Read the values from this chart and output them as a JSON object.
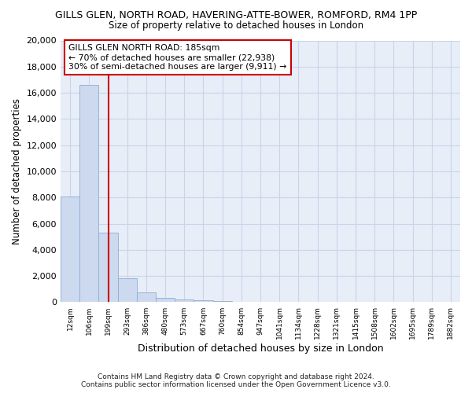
{
  "title": "GILLS GLEN, NORTH ROAD, HAVERING-ATTE-BOWER, ROMFORD, RM4 1PP",
  "subtitle": "Size of property relative to detached houses in London",
  "xlabel": "Distribution of detached houses by size in London",
  "ylabel": "Number of detached properties",
  "bar_color": "#ccd9ee",
  "bar_edge_color": "#8eadd4",
  "categories": [
    "12sqm",
    "106sqm",
    "199sqm",
    "293sqm",
    "386sqm",
    "480sqm",
    "573sqm",
    "667sqm",
    "760sqm",
    "854sqm",
    "947sqm",
    "1041sqm",
    "1134sqm",
    "1228sqm",
    "1321sqm",
    "1415sqm",
    "1508sqm",
    "1602sqm",
    "1695sqm",
    "1789sqm",
    "1882sqm"
  ],
  "values": [
    8100,
    16600,
    5300,
    1800,
    750,
    350,
    200,
    130,
    100,
    50,
    0,
    0,
    0,
    0,
    0,
    0,
    0,
    0,
    0,
    0,
    0
  ],
  "ylim": [
    0,
    20000
  ],
  "yticks": [
    0,
    2000,
    4000,
    6000,
    8000,
    10000,
    12000,
    14000,
    16000,
    18000,
    20000
  ],
  "vline_x": 2.0,
  "vline_color": "#cc0000",
  "annotation_line1": "GILLS GLEN NORTH ROAD: 185sqm",
  "annotation_line2": "← 70% of detached houses are smaller (22,938)",
  "annotation_line3": "30% of semi-detached houses are larger (9,911) →",
  "footnote1": "Contains HM Land Registry data © Crown copyright and database right 2024.",
  "footnote2": "Contains public sector information licensed under the Open Government Licence v3.0.",
  "grid_color": "#c8d4e8",
  "background_color": "#e8eef8",
  "title_fontsize": 9,
  "subtitle_fontsize": 8.5
}
